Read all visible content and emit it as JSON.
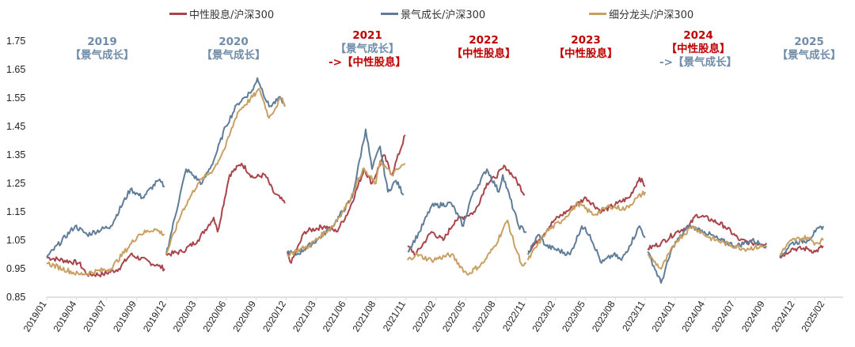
{
  "chart_data": {
    "type": "line",
    "title": "",
    "xlabel": "",
    "ylabel": "",
    "x_note": "x values are positions on the date axis measured in tick-label units (0 = 2019/01)",
    "ylim": [
      0.85,
      1.75
    ],
    "xlim": [
      0,
      26.6
    ],
    "yticks": [
      "1.75",
      "1.65",
      "1.55",
      "1.45",
      "1.35",
      "1.25",
      "1.15",
      "1.05",
      "0.95",
      "0.85"
    ],
    "ytick_values": [
      1.75,
      1.65,
      1.55,
      1.45,
      1.35,
      1.25,
      1.15,
      1.05,
      0.95,
      0.85
    ],
    "xticks": [
      "2019/01",
      "2019/04",
      "2019/07",
      "2019/09",
      "2019/12",
      "2020/03",
      "2020/06",
      "2020/09",
      "2020/12",
      "2021/03",
      "2021/06",
      "2021/08",
      "2021/11",
      "2022/02",
      "2022/05",
      "2022/08",
      "2022/11",
      "2023/02",
      "2023/05",
      "2023/08",
      "2023/11",
      "2024/01",
      "2024/04",
      "2024/07",
      "2024/09",
      "2024/12",
      "2025/02"
    ],
    "grid": false,
    "legend_position": "top",
    "series": [
      {
        "name": "中性股息/沪深300",
        "color": "#A8444A",
        "segments": [
          [
            [
              0,
              0.99
            ],
            [
              1.08,
              0.97
            ],
            [
              1.35,
              0.93
            ],
            [
              1.88,
              0.93
            ],
            [
              2.41,
              0.95
            ],
            [
              2.8,
              1.0
            ],
            [
              3.73,
              0.96
            ],
            [
              3.94,
              0.95
            ]
          ],
          [
            [
              3.99,
              1.0
            ],
            [
              4.52,
              1.01
            ],
            [
              5.05,
              1.05
            ],
            [
              5.58,
              1.13
            ],
            [
              5.71,
              1.08
            ],
            [
              6.11,
              1.28
            ],
            [
              6.51,
              1.32
            ],
            [
              6.9,
              1.27
            ],
            [
              7.3,
              1.28
            ],
            [
              7.57,
              1.22
            ],
            [
              7.96,
              1.18
            ]
          ],
          [
            [
              8.04,
              1.01
            ],
            [
              8.17,
              0.97
            ],
            [
              8.62,
              1.08
            ],
            [
              9.29,
              1.1
            ],
            [
              9.68,
              1.08
            ],
            [
              10.08,
              1.15
            ],
            [
              10.61,
              1.3
            ],
            [
              10.87,
              1.25
            ],
            [
              11.27,
              1.35
            ],
            [
              11.53,
              1.28
            ],
            [
              11.98,
              1.42
            ]
          ],
          [
            [
              12.06,
              1.03
            ],
            [
              12.33,
              1.0
            ],
            [
              12.86,
              1.08
            ],
            [
              13.25,
              1.05
            ],
            [
              13.65,
              1.12
            ],
            [
              14.31,
              1.15
            ],
            [
              14.71,
              1.25
            ],
            [
              14.97,
              1.27
            ],
            [
              15.32,
              1.31
            ],
            [
              15.63,
              1.27
            ],
            [
              15.98,
              1.21
            ]
          ],
          [
            [
              16.08,
              1.01
            ],
            [
              16.43,
              1.05
            ],
            [
              16.96,
              1.12
            ],
            [
              17.49,
              1.16
            ],
            [
              18.02,
              1.2
            ],
            [
              18.54,
              1.15
            ],
            [
              19.07,
              1.18
            ],
            [
              19.47,
              1.2
            ],
            [
              19.81,
              1.27
            ],
            [
              20.0,
              1.24
            ]
          ],
          [
            [
              20.08,
              1.02
            ],
            [
              20.53,
              1.04
            ],
            [
              21.06,
              1.08
            ],
            [
              21.46,
              1.1
            ],
            [
              21.72,
              1.14
            ],
            [
              22.25,
              1.12
            ],
            [
              22.65,
              1.1
            ],
            [
              23.17,
              1.05
            ],
            [
              23.57,
              1.04
            ],
            [
              24.05,
              1.04
            ]
          ],
          [
            [
              24.5,
              0.99
            ],
            [
              24.89,
              1.02
            ],
            [
              25.42,
              1.02
            ],
            [
              25.69,
              1.01
            ],
            [
              25.95,
              1.03
            ]
          ]
        ]
      },
      {
        "name": "景气成长/沪深300",
        "color": "#5F7D99",
        "segments": [
          [
            [
              0,
              0.99
            ],
            [
              0.95,
              1.1
            ],
            [
              1.35,
              1.07
            ],
            [
              2.14,
              1.1
            ],
            [
              2.8,
              1.23
            ],
            [
              3.2,
              1.2
            ],
            [
              3.73,
              1.26
            ],
            [
              3.94,
              1.24
            ]
          ],
          [
            [
              3.99,
              1.0
            ],
            [
              4.66,
              1.3
            ],
            [
              5.19,
              1.25
            ],
            [
              5.58,
              1.33
            ],
            [
              5.98,
              1.45
            ],
            [
              6.38,
              1.53
            ],
            [
              6.9,
              1.58
            ],
            [
              7.04,
              1.62
            ],
            [
              7.43,
              1.52
            ],
            [
              7.83,
              1.55
            ],
            [
              7.96,
              1.52
            ]
          ],
          [
            [
              8.04,
              1.01
            ],
            [
              8.36,
              1.0
            ],
            [
              9.02,
              1.05
            ],
            [
              9.55,
              1.1
            ],
            [
              10.21,
              1.2
            ],
            [
              10.66,
              1.44
            ],
            [
              10.87,
              1.3
            ],
            [
              11.14,
              1.38
            ],
            [
              11.4,
              1.22
            ],
            [
              11.67,
              1.26
            ],
            [
              11.93,
              1.21
            ]
          ],
          [
            [
              12.06,
              1.01
            ],
            [
              12.46,
              1.08
            ],
            [
              12.86,
              1.17
            ],
            [
              13.52,
              1.18
            ],
            [
              13.92,
              1.1
            ],
            [
              14.18,
              1.2
            ],
            [
              14.71,
              1.3
            ],
            [
              15.11,
              1.22
            ],
            [
              15.24,
              1.28
            ],
            [
              15.77,
              1.1
            ],
            [
              16.03,
              1.08
            ]
          ],
          [
            [
              16.08,
              1.0
            ],
            [
              16.43,
              1.07
            ],
            [
              16.69,
              1.03
            ],
            [
              17.49,
              1.0
            ],
            [
              17.88,
              1.1
            ],
            [
              18.15,
              1.07
            ],
            [
              18.54,
              0.97
            ],
            [
              18.94,
              1.0
            ],
            [
              19.21,
              0.98
            ],
            [
              19.47,
              1.03
            ],
            [
              19.81,
              1.1
            ],
            [
              20.0,
              1.06
            ]
          ],
          [
            [
              20.08,
              1.01
            ],
            [
              20.53,
              0.9
            ],
            [
              20.93,
              1.03
            ],
            [
              21.46,
              1.1
            ],
            [
              21.98,
              1.08
            ],
            [
              22.51,
              1.05
            ],
            [
              23.04,
              1.03
            ],
            [
              23.57,
              1.05
            ],
            [
              24.05,
              1.03
            ]
          ],
          [
            [
              24.5,
              0.99
            ],
            [
              24.89,
              1.04
            ],
            [
              25.42,
              1.05
            ],
            [
              25.69,
              1.08
            ],
            [
              25.95,
              1.1
            ]
          ]
        ]
      },
      {
        "name": "细分龙头/沪深300",
        "color": "#C9A063",
        "segments": [
          [
            [
              0,
              0.97
            ],
            [
              1.08,
              0.93
            ],
            [
              2.14,
              0.95
            ],
            [
              3.07,
              1.07
            ],
            [
              3.6,
              1.09
            ],
            [
              3.94,
              1.07
            ]
          ],
          [
            [
              3.99,
              1.0
            ],
            [
              4.52,
              1.15
            ],
            [
              5.05,
              1.25
            ],
            [
              5.58,
              1.3
            ],
            [
              5.98,
              1.38
            ],
            [
              6.38,
              1.5
            ],
            [
              7.12,
              1.58
            ],
            [
              7.43,
              1.48
            ],
            [
              7.83,
              1.55
            ],
            [
              7.96,
              1.52
            ]
          ],
          [
            [
              8.04,
              1.0
            ],
            [
              8.76,
              1.03
            ],
            [
              9.55,
              1.1
            ],
            [
              10.08,
              1.18
            ],
            [
              10.56,
              1.3
            ],
            [
              11.0,
              1.25
            ],
            [
              11.14,
              1.33
            ],
            [
              11.53,
              1.28
            ],
            [
              11.98,
              1.32
            ]
          ],
          [
            [
              12.06,
              0.98
            ],
            [
              12.33,
              1.0
            ],
            [
              12.86,
              0.98
            ],
            [
              13.52,
              1.0
            ],
            [
              14.05,
              0.93
            ],
            [
              14.58,
              0.97
            ],
            [
              14.97,
              1.03
            ],
            [
              15.4,
              1.12
            ],
            [
              15.61,
              1.04
            ],
            [
              15.9,
              0.96
            ],
            [
              16.03,
              0.97
            ]
          ],
          [
            [
              16.08,
              0.98
            ],
            [
              16.69,
              1.08
            ],
            [
              17.22,
              1.12
            ],
            [
              17.75,
              1.18
            ],
            [
              18.28,
              1.14
            ],
            [
              18.81,
              1.17
            ],
            [
              19.34,
              1.16
            ],
            [
              19.74,
              1.2
            ],
            [
              20.0,
              1.22
            ]
          ],
          [
            [
              20.08,
              1.0
            ],
            [
              20.53,
              0.95
            ],
            [
              21.06,
              1.05
            ],
            [
              21.59,
              1.1
            ],
            [
              22.12,
              1.06
            ],
            [
              22.65,
              1.04
            ],
            [
              23.31,
              1.02
            ],
            [
              24.05,
              1.03
            ]
          ],
          [
            [
              24.5,
              1.0
            ],
            [
              24.89,
              1.05
            ],
            [
              25.42,
              1.06
            ],
            [
              25.69,
              1.04
            ],
            [
              25.95,
              1.05
            ]
          ]
        ]
      }
    ],
    "annotations": [
      {
        "year": "2019",
        "lines": [
          {
            "text": "【景气成长】",
            "color": "blue"
          }
        ],
        "year_color": "blue"
      },
      {
        "year": "2020",
        "lines": [
          {
            "text": "【景气成长】",
            "color": "blue"
          }
        ],
        "year_color": "blue"
      },
      {
        "year": "2021",
        "lines": [
          {
            "text": "【景气成长】",
            "color": "blue"
          },
          {
            "text": "->【中性股息】",
            "color": "red"
          }
        ],
        "year_color": "red"
      },
      {
        "year": "2022",
        "lines": [
          {
            "text": "【中性股息】",
            "color": "red"
          }
        ],
        "year_color": "red"
      },
      {
        "year": "2023",
        "lines": [
          {
            "text": "【中性股息】",
            "color": "red"
          }
        ],
        "year_color": "red"
      },
      {
        "year": "2024",
        "lines": [
          {
            "text": "【中性股息】",
            "color": "red"
          },
          {
            "text": "->【景气成长】",
            "color": "blue"
          }
        ],
        "year_color": "red"
      },
      {
        "year": "2025",
        "lines": [
          {
            "text": "【景气成长】",
            "color": "blue"
          }
        ],
        "year_color": "blue"
      }
    ]
  }
}
